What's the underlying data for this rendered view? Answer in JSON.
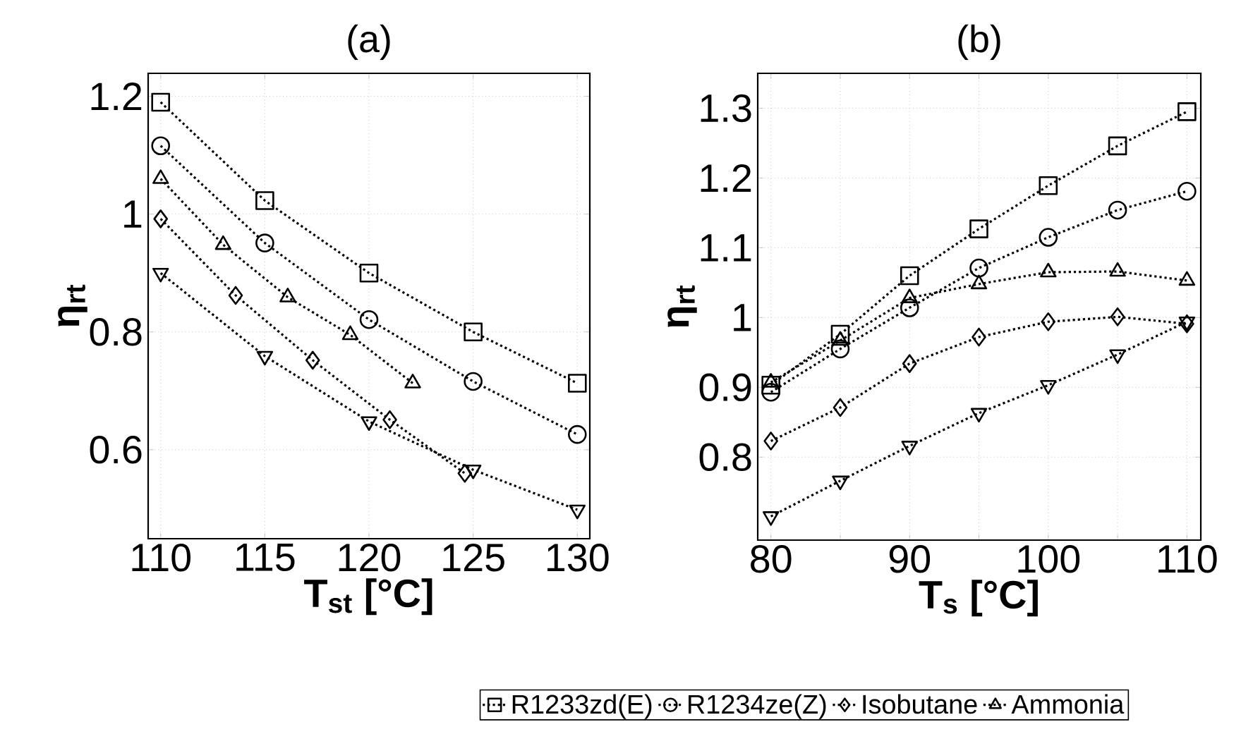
{
  "chart_data": [
    {
      "type": "line",
      "title": "(a)",
      "xlabel": "T$_{st}$ [°C]",
      "ylabel": "η$_{rt}$",
      "xlim": [
        109.4,
        130.6
      ],
      "ylim": [
        0.449,
        1.239
      ],
      "xticks": [
        110,
        115,
        120,
        125,
        130
      ],
      "yticks": [
        0.6,
        0.8,
        1,
        1.2
      ],
      "grid": true,
      "line_style": "dotted",
      "series": [
        {
          "marker": "square",
          "color": "#000000",
          "x": [
            110,
            115,
            120,
            125,
            130
          ],
          "values": [
            1.19,
            1.023,
            0.9,
            0.8,
            0.713
          ]
        },
        {
          "marker": "circle",
          "color": "#000000",
          "x": [
            110,
            115,
            120,
            125,
            130
          ],
          "values": [
            1.116,
            0.951,
            0.821,
            0.716,
            0.626
          ]
        },
        {
          "marker": "triangle_down",
          "color": "#000000",
          "x": [
            110,
            115,
            120,
            125,
            130
          ],
          "values": [
            0.9,
            0.759,
            0.648,
            0.566,
            0.498
          ]
        },
        {
          "marker": "diamond",
          "color": "#000000",
          "x": [
            110,
            113.6,
            117.3,
            121.0,
            124.6
          ],
          "values": [
            0.992,
            0.862,
            0.752,
            0.651,
            0.56
          ]
        },
        {
          "marker": "triangle",
          "color": "#000000",
          "x": [
            110,
            113.0,
            116.1,
            119.1,
            122.1
          ],
          "values": [
            1.06,
            0.948,
            0.859,
            0.795,
            0.713
          ]
        }
      ]
    },
    {
      "type": "line",
      "title": "(b)",
      "xlabel": "T$_{s}$ [°C]",
      "ylabel": "η$_{rt}$",
      "xlim": [
        79.05,
        111
      ],
      "ylim": [
        0.681,
        1.35
      ],
      "xticks": [
        80,
        {
          "value": 85,
          "label": null
        },
        90,
        {
          "value": 95,
          "label": null
        },
        100,
        {
          "value": 105,
          "label": null
        },
        110
      ],
      "yticks": [
        0.8,
        0.9,
        1,
        1.1,
        1.2,
        1.3
      ],
      "grid": true,
      "line_style": "dotted",
      "legend": "bottom",
      "series": [
        {
          "name": "R1233zd(E)",
          "marker": "square",
          "color": "#000000",
          "x": [
            80,
            85,
            90,
            95,
            100,
            105,
            110
          ],
          "values": [
            0.903,
            0.976,
            1.06,
            1.127,
            1.189,
            1.246,
            1.295
          ]
        },
        {
          "name": "R1234ze(Z)",
          "marker": "circle",
          "color": "#000000",
          "x": [
            80,
            85,
            90,
            95,
            100,
            105,
            110
          ],
          "values": [
            0.893,
            0.955,
            1.014,
            1.071,
            1.115,
            1.154,
            1.181
          ]
        },
        {
          "marker": "triangle_down",
          "color": "#000000",
          "x": [
            80,
            85,
            90,
            95,
            100,
            105,
            110
          ],
          "values": [
            0.715,
            0.766,
            0.816,
            0.863,
            0.903,
            0.947,
            0.994
          ]
        },
        {
          "name": "Isobutane",
          "marker": "diamond",
          "color": "#000000",
          "x": [
            80,
            85,
            90,
            95,
            100,
            105,
            110
          ],
          "values": [
            0.823,
            0.871,
            0.934,
            0.972,
            0.994,
            1.001,
            0.991
          ]
        },
        {
          "name": "Ammonia",
          "marker": "triangle",
          "color": "#000000",
          "x": [
            80,
            85,
            90,
            95,
            100,
            105,
            110
          ],
          "values": [
            0.907,
            0.967,
            1.028,
            1.048,
            1.065,
            1.066,
            1.053
          ]
        }
      ]
    }
  ]
}
